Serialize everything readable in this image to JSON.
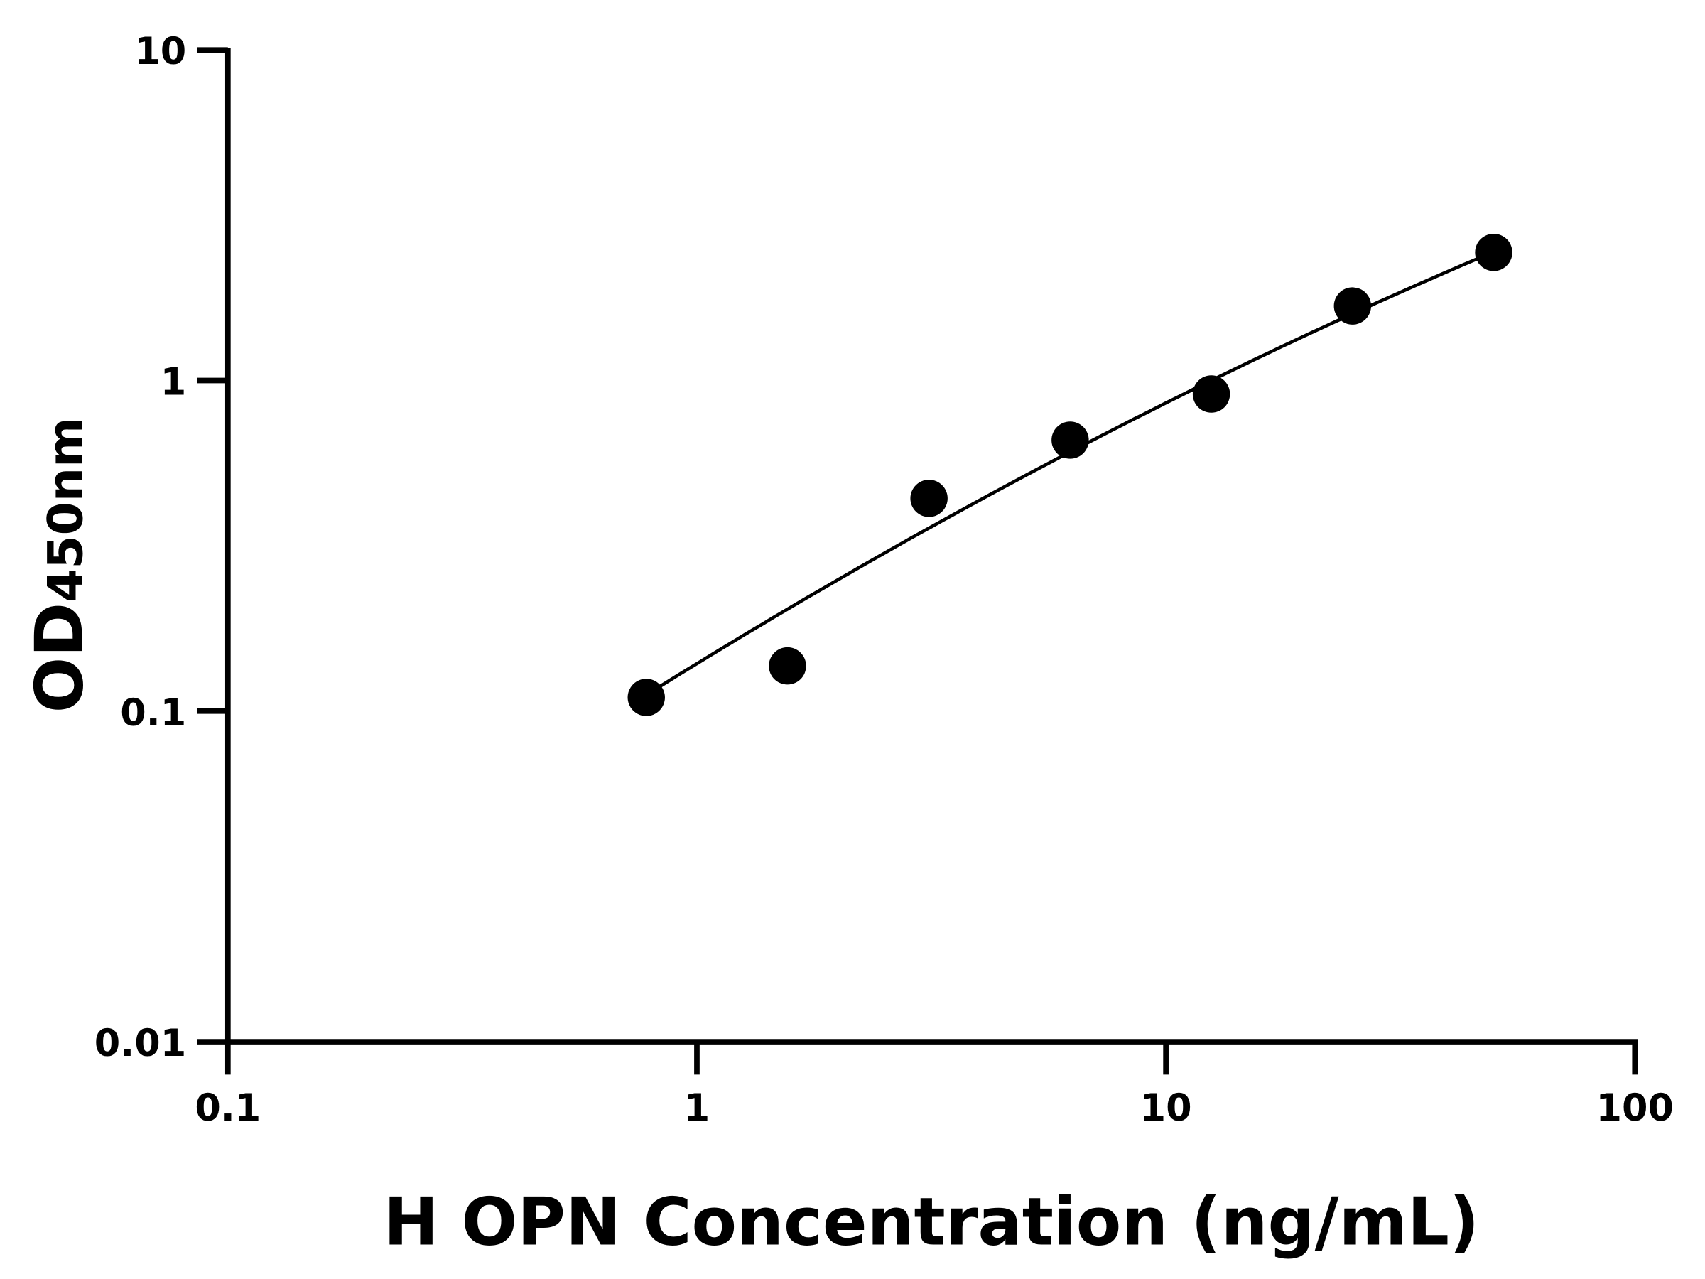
{
  "chart_data": {
    "type": "scatter",
    "title": "",
    "xlabel": "H OPN Concentration (ng/mL)",
    "ylabel_main": "OD",
    "ylabel_sub": "450nm",
    "x_scale": "log",
    "y_scale": "log",
    "xlim": [
      0.1,
      100
    ],
    "ylim": [
      0.01,
      10
    ],
    "x_ticks": [
      0.1,
      1,
      10,
      100
    ],
    "x_tick_labels": [
      "0.1",
      "1",
      "10",
      "100"
    ],
    "y_ticks": [
      0.01,
      0.1,
      1,
      10
    ],
    "y_tick_labels": [
      "0.01",
      "0.1",
      "1",
      "10"
    ],
    "grid": false,
    "points": [
      {
        "x": 0.78,
        "y": 0.11
      },
      {
        "x": 1.56,
        "y": 0.137
      },
      {
        "x": 3.125,
        "y": 0.44
      },
      {
        "x": 6.25,
        "y": 0.66
      },
      {
        "x": 12.5,
        "y": 0.91
      },
      {
        "x": 25,
        "y": 1.68
      },
      {
        "x": 50,
        "y": 2.44
      }
    ],
    "fit_curve": {
      "x_range": [
        0.78,
        50
      ],
      "anchor_points": [
        [
          0.78,
          0.112
        ],
        [
          12.5,
          1.0
        ],
        [
          50,
          2.45
        ]
      ]
    },
    "marker_color": "#000000",
    "line_color": "#000000"
  }
}
